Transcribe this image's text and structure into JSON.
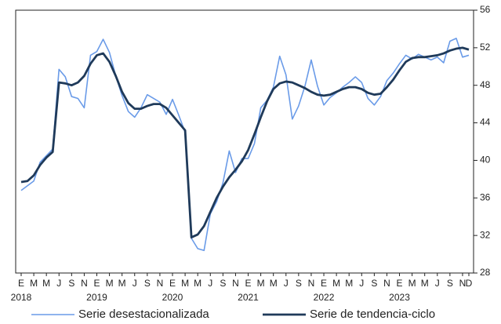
{
  "chart_data": {
    "type": "line",
    "categories": [
      "E",
      null,
      "M",
      null,
      "M",
      null,
      "J",
      null,
      "S",
      null,
      "N",
      null,
      "E",
      null,
      "M",
      null,
      "M",
      null,
      "J",
      null,
      "S",
      null,
      "N",
      null,
      "E",
      null,
      "M",
      null,
      "M",
      null,
      "J",
      null,
      "S",
      null,
      "N",
      null,
      "E",
      null,
      "M",
      null,
      "M",
      null,
      "J",
      null,
      "S",
      null,
      "N",
      null,
      "E",
      null,
      "M",
      null,
      "M",
      null,
      "J",
      null,
      "S",
      null,
      "N",
      null,
      "E",
      null,
      "M",
      null,
      "M",
      null,
      "J",
      null,
      "S",
      null,
      "N",
      "D"
    ],
    "year_labels": [
      "2018",
      "2019",
      "2020",
      "2021",
      "2022",
      "2023"
    ],
    "series": [
      {
        "name": "Serie desestacionalizada",
        "color": "#6a9be8",
        "width": 1.6,
        "values": [
          36.8,
          37.3,
          37.8,
          39.8,
          40.5,
          41.2,
          49.7,
          48.9,
          46.8,
          46.6,
          45.6,
          51.2,
          51.6,
          52.9,
          51.5,
          49.0,
          46.9,
          45.2,
          44.6,
          45.6,
          47.0,
          46.6,
          46.2,
          44.9,
          46.5,
          44.8,
          43.0,
          31.7,
          30.6,
          30.4,
          34.3,
          35.6,
          37.6,
          41.0,
          38.7,
          40.2,
          40.2,
          41.8,
          45.6,
          46.4,
          47.8,
          51.1,
          49.1,
          44.4,
          45.8,
          47.9,
          50.7,
          47.9,
          45.9,
          46.7,
          47.2,
          47.8,
          48.3,
          48.9,
          48.3,
          46.6,
          45.9,
          46.8,
          48.5,
          49.3,
          50.3,
          51.2,
          50.8,
          51.3,
          51.0,
          50.7,
          51.0,
          50.4,
          52.7,
          53.0,
          51.0,
          51.2
        ]
      },
      {
        "name": "Serie de tendencia-ciclo",
        "color": "#1f3a5a",
        "width": 2.8,
        "values": [
          37.7,
          37.8,
          38.4,
          39.5,
          40.3,
          40.9,
          48.3,
          48.2,
          48.0,
          48.3,
          49.0,
          50.3,
          51.2,
          51.4,
          50.5,
          49.0,
          47.3,
          46.1,
          45.5,
          45.5,
          45.8,
          46.0,
          46.0,
          45.6,
          44.8,
          44.0,
          43.2,
          31.8,
          32.1,
          33.0,
          34.5,
          36.0,
          37.2,
          38.2,
          39.0,
          39.9,
          41.1,
          42.8,
          44.6,
          46.3,
          47.6,
          48.2,
          48.4,
          48.3,
          48.0,
          47.7,
          47.3,
          47.0,
          46.9,
          47.0,
          47.3,
          47.6,
          47.8,
          47.8,
          47.6,
          47.2,
          47.0,
          47.1,
          47.8,
          48.6,
          49.6,
          50.5,
          50.9,
          51.0,
          51.0,
          51.1,
          51.2,
          51.4,
          51.7,
          51.9,
          52.0,
          51.8
        ]
      }
    ],
    "ylim": [
      28,
      56
    ],
    "yticks": [
      28,
      32,
      36,
      40,
      44,
      48,
      52,
      56
    ],
    "y_axis_side": "right",
    "grid": false,
    "legend": "bottom"
  }
}
